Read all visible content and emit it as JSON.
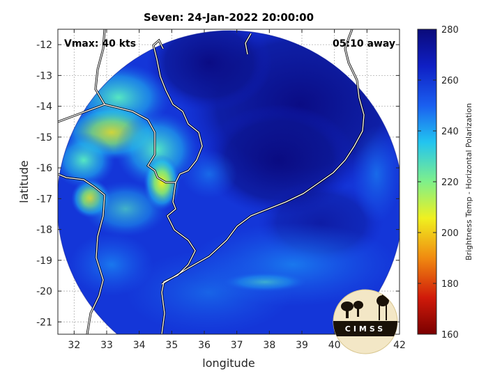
{
  "title": "Seven: 24-Jan-2022 20:00:00",
  "vmax_label": "Vmax: 40 kts",
  "away_label": "05:10 away",
  "xlabel": "longitude",
  "ylabel": "latitude",
  "x_ticks": [
    "32",
    "33",
    "34",
    "35",
    "36",
    "37",
    "38",
    "39",
    "40",
    "41",
    "42"
  ],
  "y_ticks": [
    "-12",
    "-13",
    "-14",
    "-15",
    "-16",
    "-17",
    "-18",
    "-19",
    "-20",
    "-21"
  ],
  "colorbar": {
    "label": "Brightness Temp - Horizontal Polarization",
    "ticks": [
      "280",
      "260",
      "240",
      "220",
      "200",
      "180",
      "160"
    ],
    "colors": [
      "#0a0a7a",
      "#0f1fc4",
      "#1a5ff0",
      "#22c4f0",
      "#7ff08a",
      "#f0f020",
      "#f08a10",
      "#d01a0a",
      "#7a0000"
    ]
  },
  "logo": {
    "text": "CIMSS"
  },
  "chart_data": {
    "type": "heatmap",
    "title": "Seven: 24-Jan-2022 20:00:00",
    "xlabel": "longitude",
    "ylabel": "latitude",
    "xlim": [
      31.5,
      42
    ],
    "ylim": [
      -21.4,
      -11.5
    ],
    "color_range": [
      160,
      280
    ],
    "colorbar_label": "Brightness Temp - Horizontal Polarization",
    "vmax_kts": 40,
    "time_away": "05:10"
  }
}
